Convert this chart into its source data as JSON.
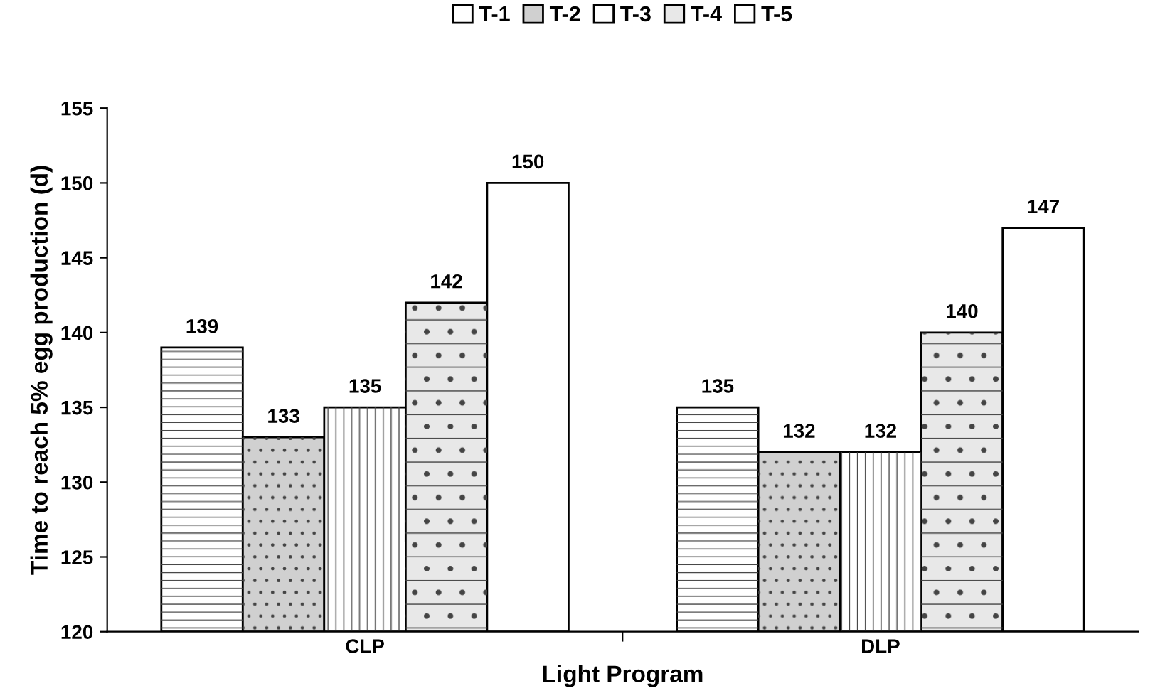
{
  "chart_data": {
    "type": "bar",
    "xlabel": "Light Program",
    "ylabel": "Time to reach 5% egg production (d)",
    "categories": [
      "CLP",
      "DLP"
    ],
    "series": [
      {
        "name": "T-1",
        "color": "#ffffff",
        "values": [
          139,
          135
        ]
      },
      {
        "name": "T-2",
        "color": "#d0d0d0",
        "values": [
          133,
          132
        ]
      },
      {
        "name": "T-3",
        "color": "#ffffff",
        "values": [
          135,
          132
        ]
      },
      {
        "name": "T-4",
        "color": "#e8e8e8",
        "values": [
          142,
          140
        ]
      },
      {
        "name": "T-5",
        "color": "#ffffff",
        "values": [
          150,
          147
        ]
      }
    ],
    "ylim": [
      120,
      155
    ],
    "yticks": [
      120,
      125,
      130,
      135,
      140,
      145,
      150,
      155
    ],
    "data_labels": true,
    "legend": "top",
    "grid": false
  }
}
